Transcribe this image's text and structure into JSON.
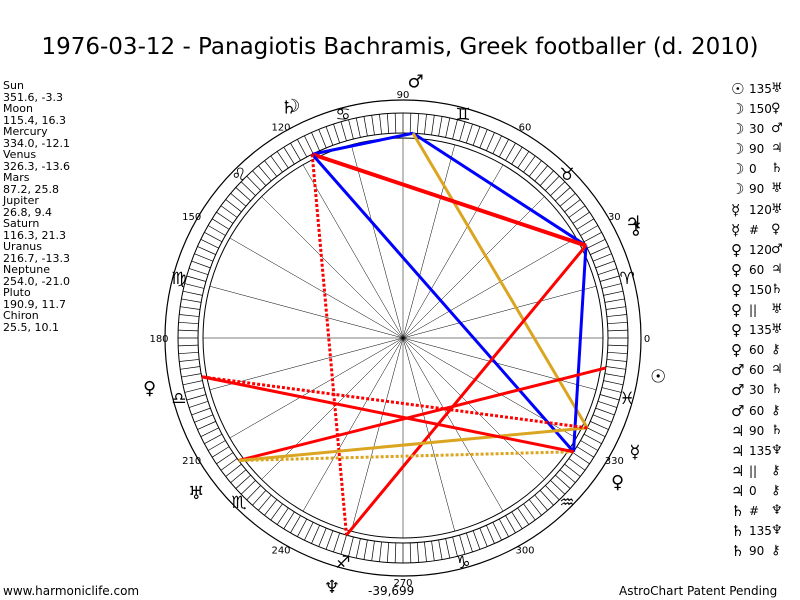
{
  "title": "1976-03-12 - Panagiotis Bachramis, Greek footballer (d. 2010)",
  "planets": [
    {
      "name": "Sun",
      "coords": "351.6, -3.3"
    },
    {
      "name": "Moon",
      "coords": "115.4, 16.3"
    },
    {
      "name": "Mercury",
      "coords": "334.0, -12.1"
    },
    {
      "name": "Venus",
      "coords": "326.3, -13.6"
    },
    {
      "name": "Mars",
      "coords": "87.2, 25.8"
    },
    {
      "name": "Jupiter",
      "coords": "26.8, 9.4"
    },
    {
      "name": "Saturn",
      "coords": "116.3, 21.3"
    },
    {
      "name": "Uranus",
      "coords": "216.7, -13.3"
    },
    {
      "name": "Neptune",
      "coords": "254.0, -21.0"
    },
    {
      "name": "Pluto",
      "coords": "190.9, 11.7"
    },
    {
      "name": "Chiron",
      "coords": "25.5, 10.1"
    }
  ],
  "aspects": [
    {
      "p1": "☉",
      "angle": "135",
      "p2": "♅"
    },
    {
      "p1": "☽",
      "angle": "150",
      "p2": "♀"
    },
    {
      "p1": "☽",
      "angle": "30",
      "p2": "♂"
    },
    {
      "p1": "☽",
      "angle": "90",
      "p2": "♃"
    },
    {
      "p1": "☽",
      "angle": "0",
      "p2": "♄"
    },
    {
      "p1": "☽",
      "angle": "90",
      "p2": "♅"
    },
    {
      "p1": "☿",
      "angle": "120",
      "p2": "♅"
    },
    {
      "p1": "☿",
      "angle": "#",
      "p2": "♀"
    },
    {
      "p1": "♀",
      "angle": "120",
      "p2": "♂"
    },
    {
      "p1": "♀",
      "angle": "60",
      "p2": "♃"
    },
    {
      "p1": "♀",
      "angle": "150",
      "p2": "♄"
    },
    {
      "p1": "♀",
      "angle": "||",
      "p2": "♅"
    },
    {
      "p1": "♀",
      "angle": "135",
      "p2": "♅"
    },
    {
      "p1": "♀",
      "angle": "60",
      "p2": "⚷"
    },
    {
      "p1": "♂",
      "angle": "60",
      "p2": "♃"
    },
    {
      "p1": "♂",
      "angle": "30",
      "p2": "♄"
    },
    {
      "p1": "♂",
      "angle": "60",
      "p2": "⚷"
    },
    {
      "p1": "♃",
      "angle": "90",
      "p2": "♄"
    },
    {
      "p1": "♃",
      "angle": "135",
      "p2": "♆"
    },
    {
      "p1": "♃",
      "angle": "||",
      "p2": "⚷"
    },
    {
      "p1": "♃",
      "angle": "0",
      "p2": "⚷"
    },
    {
      "p1": "♄",
      "angle": "#",
      "p2": "♆"
    },
    {
      "p1": "♄",
      "angle": "135",
      "p2": "♆"
    },
    {
      "p1": "♄",
      "angle": "90",
      "p2": "⚷"
    }
  ],
  "wheel": {
    "degree_labels": [
      "0",
      "30",
      "60",
      "90",
      "120",
      "150",
      "180",
      "210",
      "240",
      "270",
      "300",
      "330"
    ],
    "signs": [
      "♈",
      "♉",
      "♊",
      "♋",
      "♌",
      "♍",
      "♎",
      "♏",
      "♐",
      "♑",
      "♒",
      "♓"
    ],
    "planet_glyphs": [
      {
        "glyph": "☉",
        "lon": 351.6,
        "color": "#000000"
      },
      {
        "glyph": "☽",
        "lon": 115.4,
        "color": "#000000"
      },
      {
        "glyph": "☿",
        "lon": 334.0,
        "color": "#000000"
      },
      {
        "glyph": "♀",
        "lon": 326.3,
        "color": "#000000"
      },
      {
        "glyph": "♂",
        "lon": 87.2,
        "color": "#000000"
      },
      {
        "glyph": "♃",
        "lon": 26.8,
        "color": "#000000"
      },
      {
        "glyph": "♄",
        "lon": 116.3,
        "color": "#000000"
      },
      {
        "glyph": "♅",
        "lon": 216.7,
        "color": "#000000"
      },
      {
        "glyph": "♆",
        "lon": 254.0,
        "color": "#000000"
      },
      {
        "glyph": "♀",
        "lon": 190.9,
        "color": "#000000"
      },
      {
        "glyph": "⚷",
        "lon": 25.5,
        "color": "#000000"
      }
    ],
    "aspect_lines": [
      {
        "a": 87.2,
        "b": 116.3,
        "color": "#0000ff",
        "style": "solid"
      },
      {
        "a": 87.2,
        "b": 26.8,
        "color": "#0000ff",
        "style": "solid"
      },
      {
        "a": 87.2,
        "b": 334.0,
        "color": "#daa520",
        "style": "solid"
      },
      {
        "a": 116.3,
        "b": 26.8,
        "color": "#ff0000",
        "style": "bold"
      },
      {
        "a": 116.3,
        "b": 326.3,
        "color": "#0000ff",
        "style": "solid"
      },
      {
        "a": 116.3,
        "b": 254.0,
        "color": "#ff0000",
        "style": "dotted"
      },
      {
        "a": 26.8,
        "b": 326.3,
        "color": "#0000ff",
        "style": "solid"
      },
      {
        "a": 26.8,
        "b": 254.0,
        "color": "#ff0000",
        "style": "solid"
      },
      {
        "a": 351.6,
        "b": 216.7,
        "color": "#ff0000",
        "style": "solid"
      },
      {
        "a": 334.0,
        "b": 216.7,
        "color": "#daa520",
        "style": "solid"
      },
      {
        "a": 326.3,
        "b": 216.7,
        "color": "#daa520",
        "style": "dotted"
      },
      {
        "a": 326.3,
        "b": 190.9,
        "color": "#ff0000",
        "style": "solid"
      },
      {
        "a": 334.0,
        "b": 190.9,
        "color": "#ff0000",
        "style": "dotted"
      }
    ]
  },
  "footer": {
    "website": "www.harmoniclife.com",
    "center_value": "-39,699",
    "credit": "AstroChart Patent Pending"
  }
}
